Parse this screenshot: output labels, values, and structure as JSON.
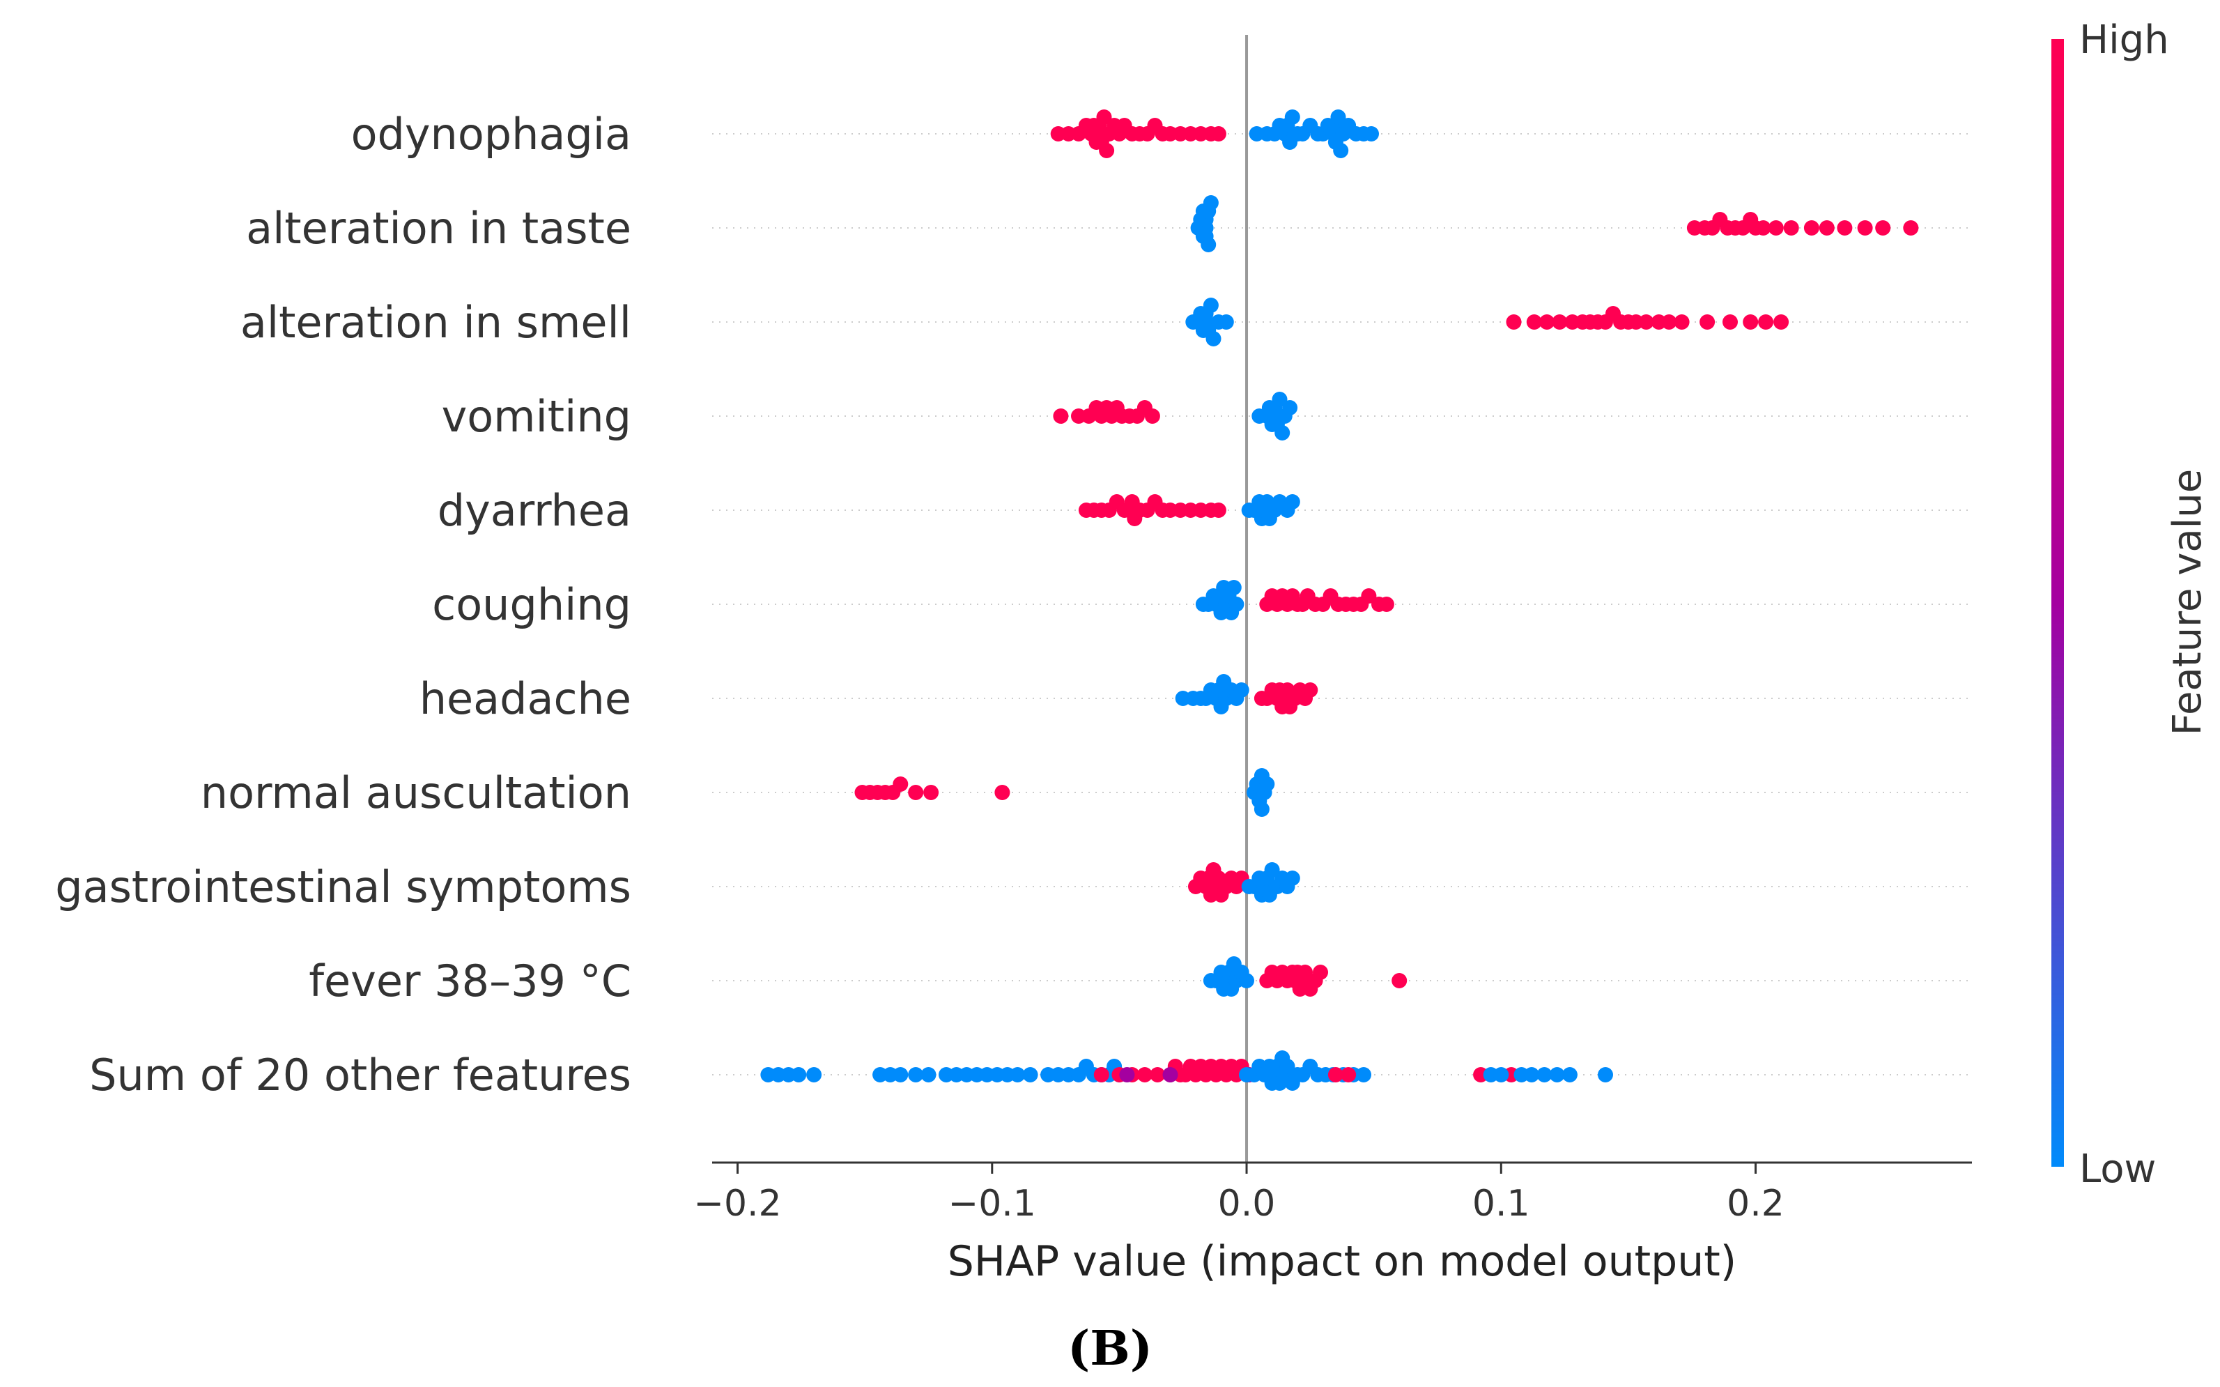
{
  "chart_data": {
    "type": "scatter",
    "subtype": "shap-beeswarm-summary",
    "panel_label": "(B)",
    "xlabel": "SHAP value (impact on model output)",
    "xlim": [
      -0.21,
      0.285
    ],
    "xticks": [
      -0.2,
      -0.1,
      0.0,
      0.1,
      0.2
    ],
    "xtick_labels": [
      "−0.2",
      "−0.1",
      "0.0",
      "0.1",
      "0.2"
    ],
    "colorbar": {
      "label": "Feature value",
      "high_label": "High",
      "low_label": "Low",
      "high_color": "#ff0052",
      "mid_color": "#a400a0",
      "low_color": "#008bfb"
    },
    "features": [
      {
        "name": "odynophagia",
        "clusters": [
          {
            "color": "high",
            "points": [
              -0.074,
              -0.07,
              -0.066,
              -0.063,
              -0.061,
              -0.06,
              -0.059,
              -0.058,
              -0.058,
              -0.057,
              -0.056,
              -0.055,
              -0.054,
              -0.052,
              -0.05,
              -0.048,
              -0.045,
              -0.042,
              -0.039,
              -0.036,
              -0.033,
              -0.03,
              -0.026,
              -0.022,
              -0.018,
              -0.014,
              -0.011
            ]
          },
          {
            "color": "low",
            "points": [
              0.004,
              0.008,
              0.011,
              0.013,
              0.015,
              0.016,
              0.017,
              0.018,
              0.02,
              0.022,
              0.025,
              0.028,
              0.03,
              0.032,
              0.034,
              0.035,
              0.035,
              0.036,
              0.037,
              0.038,
              0.04,
              0.043,
              0.046,
              0.049
            ]
          }
        ]
      },
      {
        "name": "alteration in taste",
        "clusters": [
          {
            "color": "low",
            "points": [
              -0.019,
              -0.018,
              -0.017,
              -0.017,
              -0.016,
              -0.016,
              -0.016,
              -0.015,
              -0.015,
              -0.014
            ]
          },
          {
            "color": "high",
            "points": [
              0.176,
              0.18,
              0.183,
              0.186,
              0.189,
              0.192,
              0.195,
              0.198,
              0.2,
              0.203,
              0.208,
              0.214,
              0.222,
              0.228,
              0.235,
              0.243,
              0.25,
              0.261
            ]
          }
        ]
      },
      {
        "name": "alteration in smell",
        "clusters": [
          {
            "color": "low",
            "points": [
              -0.021,
              -0.019,
              -0.018,
              -0.017,
              -0.016,
              -0.016,
              -0.015,
              -0.014,
              -0.013,
              -0.011,
              -0.008
            ]
          },
          {
            "color": "high",
            "points": [
              0.105,
              0.113,
              0.118,
              0.123,
              0.128,
              0.132,
              0.135,
              0.138,
              0.141,
              0.144,
              0.147,
              0.15,
              0.153,
              0.157,
              0.162,
              0.166,
              0.171,
              0.181,
              0.19,
              0.198,
              0.204,
              0.21
            ]
          }
        ]
      },
      {
        "name": "vomiting",
        "clusters": [
          {
            "color": "high",
            "points": [
              -0.073,
              -0.066,
              -0.062,
              -0.059,
              -0.057,
              -0.055,
              -0.053,
              -0.051,
              -0.049,
              -0.046,
              -0.043,
              -0.04,
              -0.037
            ]
          },
          {
            "color": "low",
            "points": [
              0.005,
              0.008,
              0.009,
              0.01,
              0.011,
              0.011,
              0.012,
              0.013,
              0.014,
              0.015,
              0.017
            ]
          }
        ]
      },
      {
        "name": "dyarrhea",
        "clusters": [
          {
            "color": "high",
            "points": [
              -0.063,
              -0.06,
              -0.057,
              -0.054,
              -0.051,
              -0.048,
              -0.046,
              -0.045,
              -0.044,
              -0.042,
              -0.039,
              -0.036,
              -0.033,
              -0.03,
              -0.026,
              -0.022,
              -0.018,
              -0.014,
              -0.011
            ]
          },
          {
            "color": "low",
            "points": [
              0.001,
              0.003,
              0.005,
              0.006,
              0.007,
              0.008,
              0.009,
              0.011,
              0.013,
              0.016,
              0.018
            ]
          }
        ]
      },
      {
        "name": "coughing",
        "clusters": [
          {
            "color": "low",
            "points": [
              -0.017,
              -0.015,
              -0.013,
              -0.012,
              -0.011,
              -0.01,
              -0.009,
              -0.008,
              -0.007,
              -0.006,
              -0.005,
              -0.004
            ]
          },
          {
            "color": "high",
            "points": [
              0.008,
              0.01,
              0.012,
              0.014,
              0.016,
              0.018,
              0.02,
              0.022,
              0.024,
              0.027,
              0.03,
              0.033,
              0.036,
              0.039,
              0.042,
              0.045,
              0.048,
              0.052,
              0.055
            ]
          }
        ]
      },
      {
        "name": "headache",
        "clusters": [
          {
            "color": "low",
            "points": [
              -0.025,
              -0.021,
              -0.018,
              -0.016,
              -0.014,
              -0.012,
              -0.011,
              -0.01,
              -0.009,
              -0.008,
              -0.006,
              -0.004,
              -0.002
            ]
          },
          {
            "color": "high",
            "points": [
              0.006,
              0.008,
              0.01,
              0.012,
              0.013,
              0.014,
              0.015,
              0.016,
              0.017,
              0.019,
              0.021,
              0.023,
              0.025
            ]
          }
        ]
      },
      {
        "name": "normal auscultation",
        "clusters": [
          {
            "color": "high",
            "points": [
              -0.151,
              -0.148,
              -0.145,
              -0.142,
              -0.139,
              -0.136,
              -0.13,
              -0.124,
              -0.096
            ]
          },
          {
            "color": "low",
            "points": [
              0.003,
              0.004,
              0.005,
              0.006,
              0.006,
              0.007,
              0.008
            ]
          }
        ]
      },
      {
        "name": "gastrointestinal symptoms",
        "clusters": [
          {
            "color": "high",
            "points": [
              -0.02,
              -0.018,
              -0.016,
              -0.015,
              -0.014,
              -0.013,
              -0.012,
              -0.011,
              -0.01,
              -0.008,
              -0.006,
              -0.004,
              -0.002
            ]
          },
          {
            "color": "low",
            "points": [
              0.001,
              0.003,
              0.005,
              0.006,
              0.007,
              0.008,
              0.009,
              0.01,
              0.012,
              0.014,
              0.016,
              0.018
            ]
          }
        ]
      },
      {
        "name": "fever 38–39 °C",
        "clusters": [
          {
            "color": "low",
            "points": [
              -0.014,
              -0.012,
              -0.01,
              -0.009,
              -0.008,
              -0.007,
              -0.006,
              -0.005,
              -0.004,
              -0.002,
              0.0
            ]
          },
          {
            "color": "high",
            "points": [
              0.008,
              0.01,
              0.012,
              0.014,
              0.016,
              0.018,
              0.019,
              0.02,
              0.021,
              0.022,
              0.023,
              0.025,
              0.027,
              0.029,
              0.06
            ]
          }
        ]
      },
      {
        "name": "Sum of 20 other features",
        "clusters": [
          {
            "color": "low",
            "points": [
              -0.188,
              -0.184,
              -0.18,
              -0.176,
              -0.17,
              -0.144,
              -0.14,
              -0.136,
              -0.13,
              -0.125,
              -0.118,
              -0.114,
              -0.11,
              -0.106,
              -0.102,
              -0.098,
              -0.094,
              -0.09,
              -0.085,
              -0.078,
              -0.074,
              -0.07,
              -0.066,
              -0.063,
              -0.06,
              -0.057,
              -0.054,
              -0.052,
              -0.05
            ]
          },
          {
            "color": "high",
            "points": [
              -0.057,
              -0.05,
              -0.045,
              -0.04,
              -0.035,
              -0.03,
              -0.028,
              -0.026,
              -0.024,
              -0.022,
              -0.02,
              -0.018,
              -0.016,
              -0.014,
              -0.012,
              -0.01,
              -0.008,
              -0.006,
              -0.004,
              -0.002
            ]
          },
          {
            "color": "mid",
            "points": [
              -0.047,
              -0.03,
              0.001
            ]
          },
          {
            "color": "low",
            "points": [
              0.0,
              0.003,
              0.005,
              0.007,
              0.009,
              0.01,
              0.011,
              0.012,
              0.013,
              0.014,
              0.015,
              0.016,
              0.018,
              0.02,
              0.022,
              0.025,
              0.028,
              0.031,
              0.034,
              0.038,
              0.042,
              0.046
            ]
          },
          {
            "color": "high",
            "points": [
              0.035,
              0.04,
              0.092,
              0.104
            ]
          },
          {
            "color": "low",
            "points": [
              0.096,
              0.1,
              0.108,
              0.112,
              0.117,
              0.122,
              0.127,
              0.141
            ]
          }
        ]
      }
    ]
  }
}
